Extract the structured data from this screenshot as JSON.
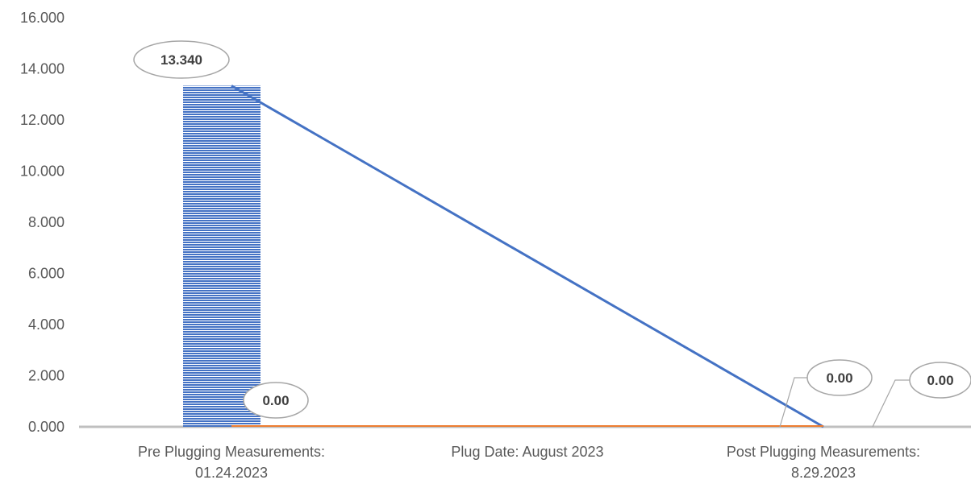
{
  "chart_data": {
    "type": "bar",
    "categories": [
      "Pre Plugging Measurements: 01.24.2023",
      "Plug Date: August 2023",
      "Post Plugging Measurements: 8.29.2023"
    ],
    "category_lines": [
      [
        "Pre Plugging Measurements:",
        "01.24.2023"
      ],
      [
        "Plug Date: August 2023"
      ],
      [
        "Post Plugging Measurements:",
        "8.29.2023"
      ]
    ],
    "series": [
      {
        "kind": "bar",
        "values": [
          13.34,
          null,
          0.0
        ],
        "labels": [
          "13.340",
          "",
          "0.00"
        ],
        "color": "#4472C4"
      },
      {
        "kind": "line",
        "values": [
          13.34,
          null,
          0.0
        ],
        "color": "#4472C4"
      },
      {
        "kind": "line",
        "values": [
          0.0,
          0.0,
          0.0
        ],
        "labels": [
          "",
          "0.00",
          "0.00"
        ],
        "color": "#ED7D31"
      }
    ],
    "ylim": [
      0,
      16
    ],
    "yticks": [
      "0.000",
      "2.000",
      "4.000",
      "6.000",
      "8.000",
      "10.000",
      "12.000",
      "14.000",
      "16.000"
    ],
    "ytick_values": [
      0,
      2,
      4,
      6,
      8,
      10,
      12,
      14,
      16
    ],
    "grid": false,
    "legend": "none"
  }
}
